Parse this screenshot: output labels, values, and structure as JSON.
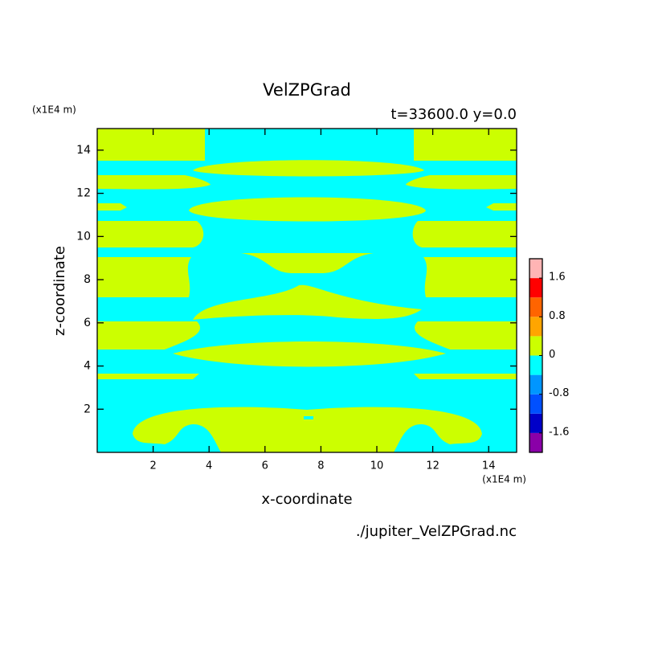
{
  "chart_data": {
    "type": "contour",
    "title": "VelZPGrad",
    "subtitle": "t=33600.0 y=0.0",
    "x_label": "x-coordinate",
    "y_label": "z-coordinate",
    "x_unit": "(x1E4 m)",
    "y_unit": "(x1E4 m)",
    "source": "./jupiter_VelZPGrad.nc",
    "xlim": [
      0,
      15
    ],
    "ylim": [
      0,
      15
    ],
    "xticks": [
      2,
      4,
      6,
      8,
      10,
      12,
      14
    ],
    "yticks": [
      2,
      4,
      6,
      8,
      10,
      12,
      14
    ],
    "colorbar": {
      "levels": [
        -2,
        -1.6,
        -1.2,
        -0.8,
        -0.4,
        0,
        0.4,
        0.8,
        1.2,
        1.6,
        2
      ],
      "colors": [
        "#8a00a8",
        "#0000c8",
        "#0050ff",
        "#0096ff",
        "#00ffff",
        "#ccff00",
        "#ffa500",
        "#ff6400",
        "#ff0000",
        "#ffb4b4"
      ],
      "ticks": [
        -1.6,
        -0.8,
        0,
        0.8,
        1.6
      ]
    }
  }
}
